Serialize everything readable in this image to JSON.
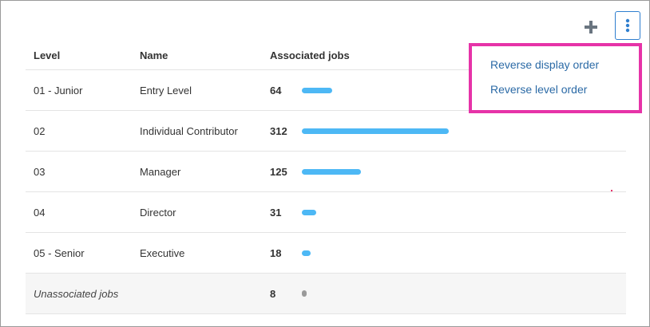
{
  "toolbar": {
    "add_icon": "plus-icon",
    "more_icon": "vertical-dots-icon",
    "accent_color": "#2f7fcf"
  },
  "table": {
    "headers": {
      "level": "Level",
      "name": "Name",
      "jobs": "Associated jobs"
    },
    "max_jobs": 312,
    "rows": [
      {
        "level": "01 - Junior",
        "name": "Entry Level",
        "jobs": 64
      },
      {
        "level": "02",
        "name": "Individual Contributor",
        "jobs": 312
      },
      {
        "level": "03",
        "name": "Manager",
        "jobs": 125
      },
      {
        "level": "04",
        "name": "Director",
        "jobs": 31
      },
      {
        "level": "05 - Senior",
        "name": "Executive",
        "jobs": 18
      }
    ],
    "unassociated": {
      "label": "Unassociated jobs",
      "jobs": 8
    },
    "bar_color": "#4db8f5"
  },
  "menu": {
    "highlight_color": "#e633a8",
    "items": [
      {
        "label": "Reverse display order"
      },
      {
        "label": "Reverse level order"
      }
    ]
  }
}
